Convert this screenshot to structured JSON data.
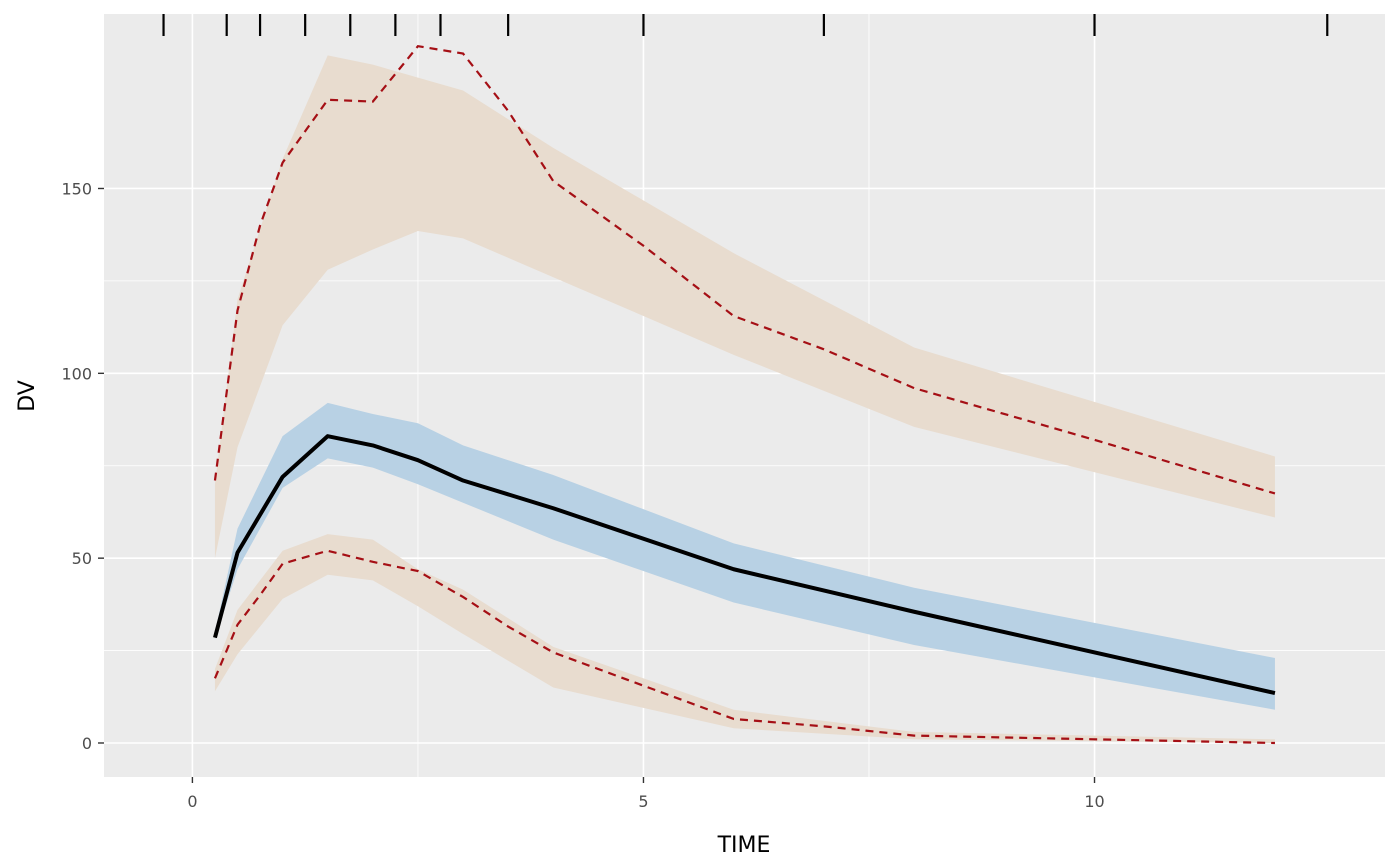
{
  "chart_data": {
    "type": "line",
    "xlabel": "TIME",
    "ylabel": "DV",
    "xlim": [
      -0.98,
      13.22
    ],
    "ylim": [
      -9.2,
      197.2
    ],
    "x_ticks": [
      0,
      5,
      10
    ],
    "y_ticks": [
      0,
      50,
      100,
      150
    ],
    "x_tick_labels": [
      "0",
      "5",
      "10"
    ],
    "y_tick_labels": [
      "0",
      "50",
      "100",
      "150"
    ],
    "grid": true,
    "legend": "none",
    "bin_separators": [
      -0.32,
      0.38,
      0.75,
      1.25,
      1.75,
      2.25,
      2.75,
      3.5,
      5.0,
      7.0,
      10.0,
      12.58
    ],
    "colors": {
      "panel_bg": "#ebebeb",
      "grid": "#ffffff",
      "outer_band": "#e8dccf",
      "median_band": "#b8d1e4",
      "median_line": "#000000",
      "percentile_line": "#a50f15",
      "bin_tick": "#000000"
    },
    "x": [
      0.25,
      0.5,
      1,
      1.5,
      2,
      2.5,
      3,
      4,
      6,
      8,
      12
    ],
    "series": [
      {
        "role": "median-band",
        "lower": [
          28,
          47,
          69,
          77,
          74.5,
          70,
          65,
          55,
          38,
          26.5,
          9
        ],
        "upper": [
          30,
          58,
          83,
          92,
          89,
          86.5,
          80.5,
          72.5,
          54,
          42,
          23
        ]
      },
      {
        "role": "upper-band",
        "lower": [
          50,
          80,
          113,
          128,
          133.5,
          138.5,
          136.5,
          126,
          105,
          85.5,
          61
        ],
        "upper": [
          70,
          120,
          158,
          186,
          183.5,
          180,
          176.5,
          161,
          132.5,
          107,
          77.5
        ]
      },
      {
        "role": "lower-band",
        "lower": [
          14,
          24,
          39,
          45.5,
          44,
          37,
          29.5,
          15,
          4,
          1,
          0
        ],
        "upper": [
          20,
          36,
          52,
          56.5,
          55,
          47,
          41.5,
          26,
          9,
          3,
          1
        ]
      },
      {
        "role": "median-line",
        "values": [
          28.5,
          51.5,
          72,
          83,
          80.5,
          76.5,
          71,
          63.5,
          47,
          35.5,
          13.5
        ]
      }
    ],
    "observed_percentiles": {
      "x": [
        0.25,
        0.5,
        0.75,
        1,
        1.5,
        2,
        2.5,
        3,
        3.5,
        4,
        5,
        6,
        7,
        8,
        10,
        12
      ],
      "upper": [
        71,
        117,
        140,
        157,
        174,
        173.5,
        188.5,
        186.5,
        171,
        152,
        134.5,
        115.5,
        106.5,
        96,
        82,
        67.5
      ],
      "lower": [
        17.5,
        32,
        40,
        48.5,
        52,
        49,
        46.5,
        39.5,
        31.5,
        24.5,
        15.5,
        6.5,
        4.5,
        2,
        1,
        0
      ]
    }
  }
}
